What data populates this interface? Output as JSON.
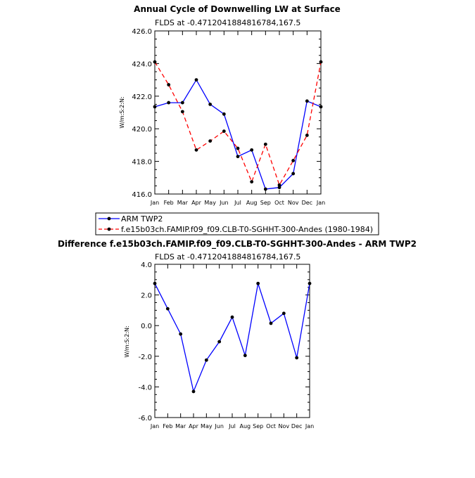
{
  "colors": {
    "arm": "#0000ff",
    "model": "#ff0000",
    "marker": "#000000",
    "frame": "#000000",
    "background": "#ffffff"
  },
  "legend": {
    "items": [
      {
        "label": "ARM TWP2",
        "style": "solid",
        "color": "#0000ff"
      },
      {
        "label": "f.e15b03ch.FAMIP.f09_f09.CLB-T0-SGHHT-300-Andes (1980-1984)",
        "style": "dashed",
        "color": "#ff0000"
      }
    ],
    "placement": "between-panels"
  },
  "chart_data": [
    {
      "type": "line",
      "title": "Annual Cycle of Downwelling LW at Surface",
      "subtitle": "FLDS at -0.4712041884816784,167.5",
      "xlabel": "",
      "ylabel": "W/m:S:2:N:",
      "categories": [
        "Jan",
        "Feb",
        "Mar",
        "Apr",
        "May",
        "Jun",
        "Jul",
        "Aug",
        "Sep",
        "Oct",
        "Nov",
        "Dec",
        "Jan"
      ],
      "ylim": [
        416.0,
        426.0
      ],
      "yticks": [
        "416.0",
        "418.0",
        "420.0",
        "422.0",
        "424.0",
        "426.0"
      ],
      "grid": false,
      "series": [
        {
          "name": "ARM TWP2",
          "color": "#0000ff",
          "style": "solid",
          "values": [
            421.35,
            421.6,
            421.6,
            423.0,
            421.5,
            420.9,
            418.3,
            418.7,
            416.3,
            416.4,
            417.25,
            421.7,
            421.35
          ]
        },
        {
          "name": "f.e15b03ch.FAMIP.f09_f09.CLB-T0-SGHHT-300-Andes (1980-1984)",
          "color": "#ff0000",
          "style": "dashed",
          "values": [
            424.1,
            422.7,
            421.05,
            418.7,
            419.25,
            419.85,
            418.8,
            416.75,
            419.05,
            416.55,
            418.05,
            419.6,
            424.1
          ]
        }
      ]
    },
    {
      "type": "line",
      "title": "Difference f.e15b03ch.FAMIP.f09_f09.CLB-T0-SGHHT-300-Andes - ARM TWP2",
      "subtitle": "FLDS at -0.4712041884816784,167.5",
      "xlabel": "",
      "ylabel": "W/m:S:2:N:",
      "categories": [
        "Jan",
        "Feb",
        "Mar",
        "Apr",
        "May",
        "Jun",
        "Jul",
        "Aug",
        "Sep",
        "Oct",
        "Nov",
        "Dec",
        "Jan"
      ],
      "ylim": [
        -6.0,
        4.0
      ],
      "yticks": [
        "-6.0",
        "-4.0",
        "-2.0",
        "0.0",
        "2.0",
        "4.0"
      ],
      "grid": false,
      "series": [
        {
          "color": "#0000ff",
          "style": "solid",
          "values": [
            2.75,
            1.1,
            -0.55,
            -4.3,
            -2.25,
            -1.05,
            0.55,
            -1.95,
            2.75,
            0.15,
            0.8,
            -2.1,
            2.75
          ]
        }
      ]
    }
  ]
}
